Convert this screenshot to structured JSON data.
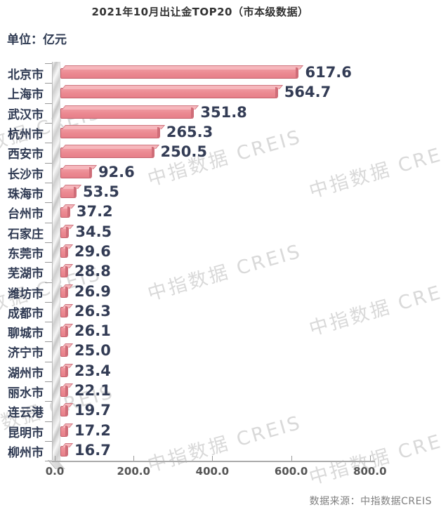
{
  "header": {
    "title": "2021年10月出让金TOP20（市本级数据）",
    "unit_label": "单位：亿元"
  },
  "chart_data": {
    "type": "bar",
    "orientation": "horizontal",
    "title": "2021年10月出让金TOP20（市本级数据）",
    "unit": "亿元",
    "categories": [
      "北京市",
      "上海市",
      "武汉市",
      "杭州市",
      "西安市",
      "长沙市",
      "珠海市",
      "台州市",
      "石家庄",
      "东莞市",
      "芜湖市",
      "潍坊市",
      "成都市",
      "聊城市",
      "济宁市",
      "湖州市",
      "丽水市",
      "连云港",
      "昆明市",
      "柳州市"
    ],
    "values": [
      617.6,
      564.7,
      351.8,
      265.3,
      250.5,
      92.6,
      53.5,
      37.2,
      34.5,
      29.6,
      28.8,
      26.9,
      26.3,
      26.1,
      25.0,
      23.4,
      22.1,
      19.7,
      17.2,
      16.7
    ],
    "value_labels": [
      "617.6",
      "564.7",
      "351.8",
      "265.3",
      "250.5",
      "92.6",
      "53.5",
      "37.2",
      "34.5",
      "29.6",
      "28.8",
      "26.9",
      "26.3",
      "26.1",
      "25.0",
      "23.4",
      "22.1",
      "19.7",
      "17.2",
      "16.7"
    ],
    "xlim": [
      0,
      800
    ],
    "x_ticks": [
      "0.0",
      "200.0",
      "400.0",
      "600.0",
      "800.0"
    ],
    "x_tick_values": [
      0,
      200,
      400,
      600,
      800
    ],
    "grid": false,
    "legend": null,
    "bar_color": "#ec8a92",
    "bar_top_color": "#f6b7bc",
    "bar_edge_color": "#c4606b",
    "label_color": "#2e3952",
    "value_label_color": "#333c55"
  },
  "watermark": {
    "text": "中指数据  CREIS"
  },
  "footer": {
    "source": "数据来源：中指数据CREIS"
  }
}
